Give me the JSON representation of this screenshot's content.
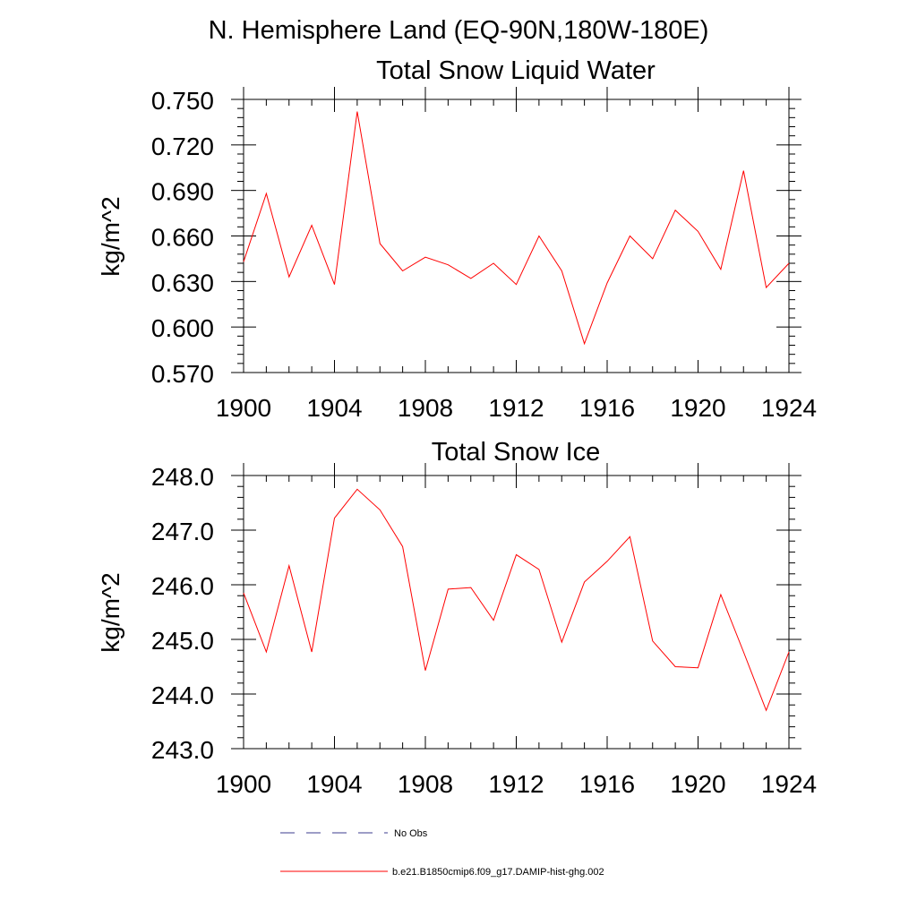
{
  "figure": {
    "title": "N. Hemisphere Land (EQ-90N,180W-180E)"
  },
  "colors": {
    "series": "#ff0000",
    "obs": "#3b3b8f",
    "axis": "#000000"
  },
  "chart_data": [
    {
      "type": "line",
      "title": "Total Snow Liquid Water",
      "xlabel": "",
      "ylabel": "kg/m^2",
      "xlim": [
        1900,
        1924
      ],
      "ylim": [
        0.57,
        0.75
      ],
      "xticks": [
        1900,
        1904,
        1908,
        1912,
        1916,
        1920,
        1924
      ],
      "xtick_labels": [
        "1900",
        "1904",
        "1908",
        "1912",
        "1916",
        "1920",
        "1924"
      ],
      "yticks": [
        0.57,
        0.6,
        0.63,
        0.66,
        0.69,
        0.72,
        0.75
      ],
      "ytick_labels": [
        "0.570",
        "0.600",
        "0.630",
        "0.660",
        "0.690",
        "0.720",
        "0.750"
      ],
      "grid": false,
      "series": [
        {
          "name": "b.e21.B1850cmip6.f09_g17.DAMIP-hist-ghg.002",
          "x": [
            1900,
            1901,
            1902,
            1903,
            1904,
            1905,
            1906,
            1907,
            1908,
            1909,
            1910,
            1911,
            1912,
            1913,
            1914,
            1915,
            1916,
            1917,
            1918,
            1919,
            1920,
            1921,
            1922,
            1923,
            1924
          ],
          "values": [
            0.643,
            0.688,
            0.633,
            0.667,
            0.628,
            0.742,
            0.655,
            0.637,
            0.646,
            0.641,
            0.632,
            0.642,
            0.628,
            0.66,
            0.637,
            0.589,
            0.629,
            0.66,
            0.645,
            0.677,
            0.663,
            0.638,
            0.703,
            0.626,
            0.642
          ]
        }
      ]
    },
    {
      "type": "line",
      "title": "Total Snow Ice",
      "xlabel": "",
      "ylabel": "kg/m^2",
      "xlim": [
        1900,
        1924
      ],
      "ylim": [
        243.0,
        248.0
      ],
      "xticks": [
        1900,
        1904,
        1908,
        1912,
        1916,
        1920,
        1924
      ],
      "xtick_labels": [
        "1900",
        "1904",
        "1908",
        "1912",
        "1916",
        "1920",
        "1924"
      ],
      "yticks": [
        243.0,
        244.0,
        245.0,
        246.0,
        247.0,
        248.0
      ],
      "ytick_labels": [
        "243.0",
        "244.0",
        "245.0",
        "246.0",
        "247.0",
        "248.0"
      ],
      "grid": false,
      "series": [
        {
          "name": "b.e21.B1850cmip6.f09_g17.DAMIP-hist-ghg.002",
          "x": [
            1900,
            1901,
            1902,
            1903,
            1904,
            1905,
            1906,
            1907,
            1908,
            1909,
            1910,
            1911,
            1912,
            1913,
            1914,
            1915,
            1916,
            1917,
            1918,
            1919,
            1920,
            1921,
            1922,
            1923,
            1924
          ],
          "values": [
            245.85,
            244.77,
            246.35,
            244.77,
            247.22,
            247.75,
            247.37,
            246.7,
            244.43,
            245.92,
            245.95,
            245.35,
            246.55,
            246.28,
            244.95,
            246.05,
            246.43,
            246.88,
            244.97,
            244.5,
            244.48,
            245.82,
            244.77,
            243.7,
            244.77
          ]
        }
      ]
    }
  ],
  "legend": {
    "placement": "bottom",
    "entries": [
      {
        "label": "No Obs",
        "style": "dashed",
        "color_key": "obs"
      },
      {
        "label": "b.e21.B1850cmip6.f09_g17.DAMIP-hist-ghg.002",
        "style": "solid",
        "color_key": "series"
      }
    ]
  }
}
